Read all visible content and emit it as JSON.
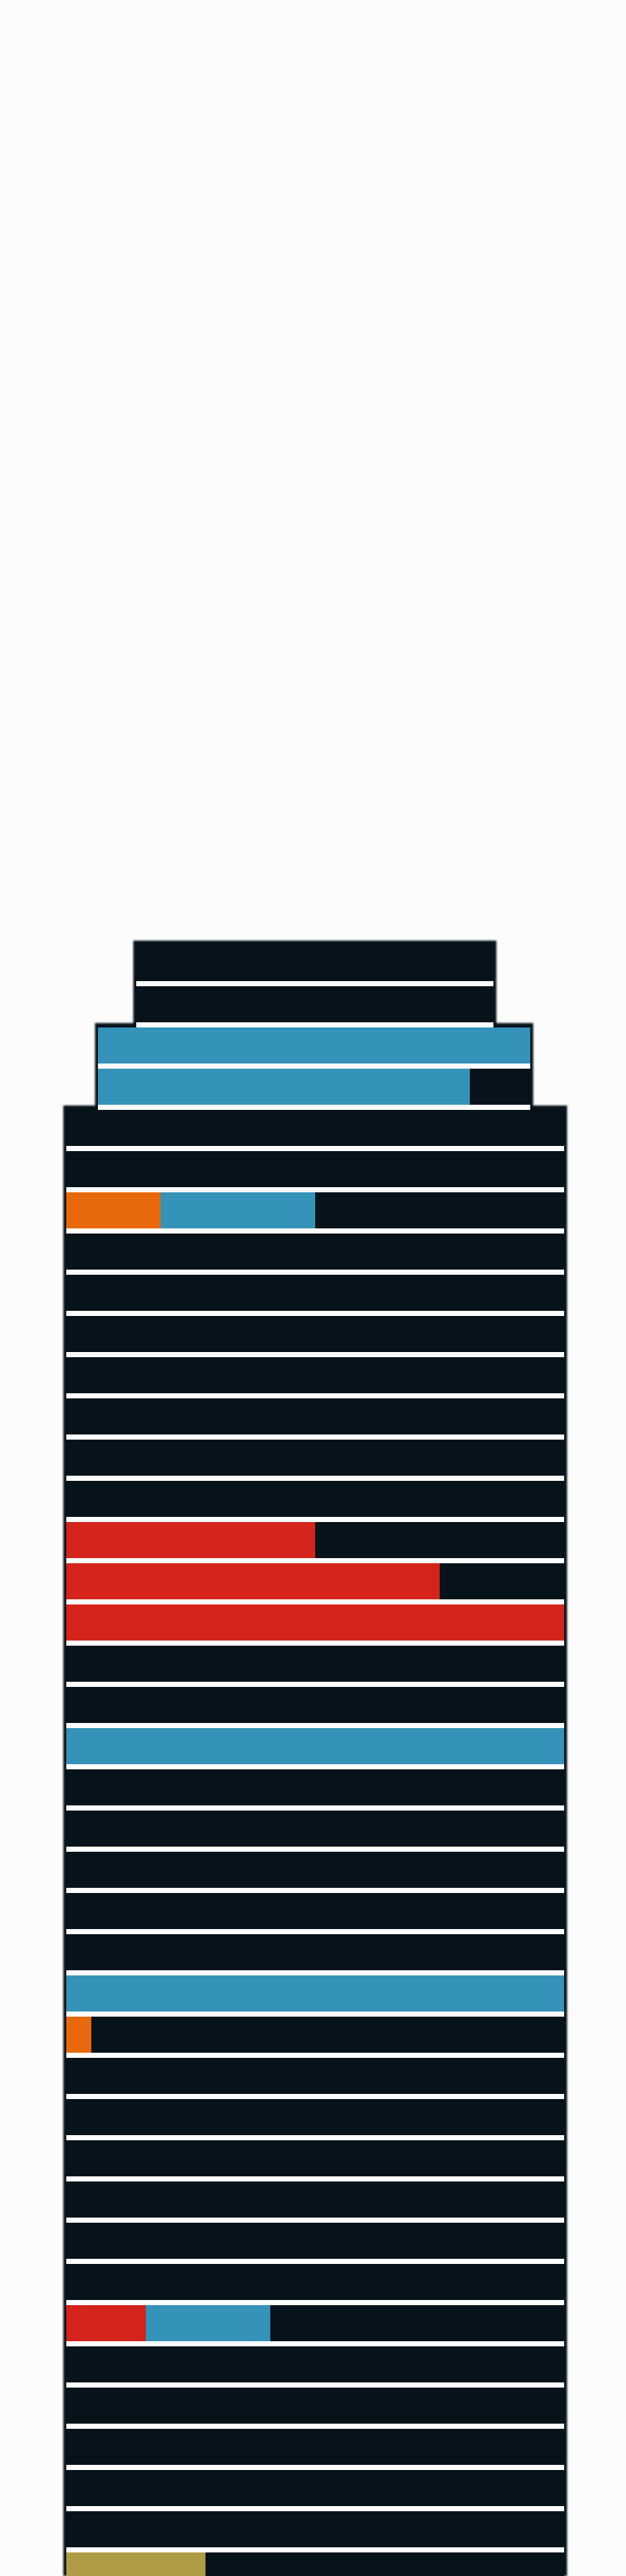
{
  "colors": {
    "background": "#fcfcfc",
    "structure": "#06131a",
    "orange": "#e8690c",
    "blue": "#3592b8",
    "red": "#d4241b",
    "gold": "#b09c45"
  },
  "floors": [
    {
      "width": "narrow",
      "segments": []
    },
    {
      "width": "narrow",
      "segments": []
    },
    {
      "width": "medium",
      "segments": [
        {
          "color": "blue",
          "fraction": 1.0
        }
      ]
    },
    {
      "width": "medium",
      "segments": [
        {
          "color": "blue",
          "fraction": 0.86
        }
      ]
    },
    {
      "width": "wide",
      "segments": []
    },
    {
      "width": "wide",
      "segments": []
    },
    {
      "width": "wide",
      "segments": [
        {
          "color": "orange",
          "fraction": 0.19
        },
        {
          "color": "blue",
          "fraction": 0.31
        }
      ]
    },
    {
      "width": "wide",
      "segments": []
    },
    {
      "width": "wide",
      "segments": []
    },
    {
      "width": "wide",
      "segments": []
    },
    {
      "width": "wide",
      "segments": []
    },
    {
      "width": "wide",
      "segments": []
    },
    {
      "width": "wide",
      "segments": []
    },
    {
      "width": "wide",
      "segments": []
    },
    {
      "width": "wide",
      "segments": [
        {
          "color": "red",
          "fraction": 0.5
        }
      ]
    },
    {
      "width": "wide",
      "segments": [
        {
          "color": "red",
          "fraction": 0.75
        }
      ]
    },
    {
      "width": "wide",
      "segments": [
        {
          "color": "red",
          "fraction": 1.0
        }
      ]
    },
    {
      "width": "wide",
      "segments": []
    },
    {
      "width": "wide",
      "segments": []
    },
    {
      "width": "wide",
      "segments": [
        {
          "color": "blue",
          "fraction": 1.0
        }
      ]
    },
    {
      "width": "wide",
      "segments": []
    },
    {
      "width": "wide",
      "segments": []
    },
    {
      "width": "wide",
      "segments": []
    },
    {
      "width": "wide",
      "segments": []
    },
    {
      "width": "wide",
      "segments": []
    },
    {
      "width": "wide",
      "segments": [
        {
          "color": "blue",
          "fraction": 1.0
        }
      ]
    },
    {
      "width": "wide",
      "segments": [
        {
          "color": "orange",
          "fraction": 0.05
        }
      ]
    },
    {
      "width": "wide",
      "segments": []
    },
    {
      "width": "wide",
      "segments": []
    },
    {
      "width": "wide",
      "segments": []
    },
    {
      "width": "wide",
      "segments": []
    },
    {
      "width": "wide",
      "segments": []
    },
    {
      "width": "wide",
      "segments": []
    },
    {
      "width": "wide",
      "segments": [
        {
          "color": "red",
          "fraction": 0.16
        },
        {
          "color": "blue",
          "fraction": 0.25
        }
      ]
    },
    {
      "width": "wide",
      "segments": []
    },
    {
      "width": "wide",
      "segments": []
    },
    {
      "width": "wide",
      "segments": []
    },
    {
      "width": "wide",
      "segments": []
    },
    {
      "width": "wide",
      "segments": []
    },
    {
      "width": "wide",
      "segments": [
        {
          "color": "gold",
          "fraction": 0.28
        }
      ]
    }
  ]
}
